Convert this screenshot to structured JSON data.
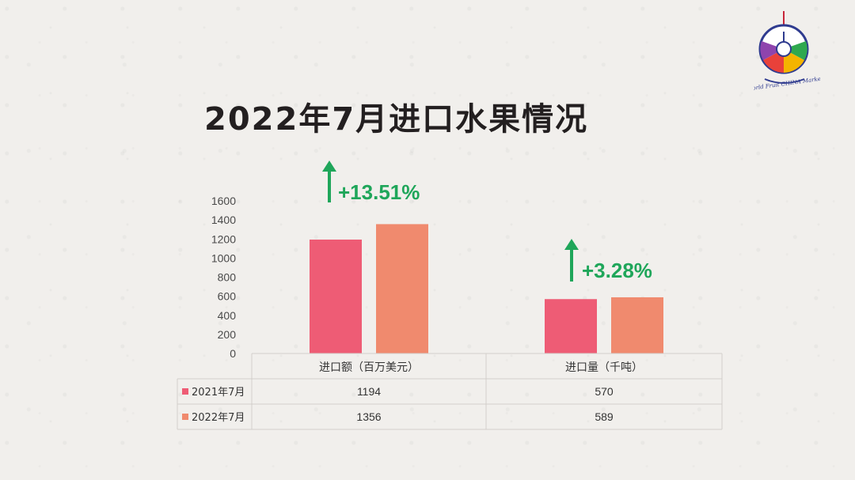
{
  "header": {
    "title": "2022年7月进口水果情况"
  },
  "logo": {
    "icon": "world-fruit-china-market-logo",
    "text": "World Fruit CHINA Market"
  },
  "colors": {
    "series_2021": "#ee5c75",
    "series_2022": "#f08a6e",
    "growth_arrow": "#1fa65a",
    "growth_text": "#1fa65a"
  },
  "chart_data": {
    "type": "bar",
    "categories": [
      "进口额（百万美元）",
      "进口量（千吨）"
    ],
    "series": [
      {
        "name": "2021年7月",
        "values": [
          1194,
          570
        ],
        "labels": [
          "1194",
          "570"
        ]
      },
      {
        "name": "2022年7月",
        "values": [
          1356,
          589
        ],
        "labels": [
          "1356",
          "589"
        ]
      }
    ],
    "yticks": [
      "0",
      "200",
      "400",
      "600",
      "800",
      "1000",
      "1200",
      "1400",
      "1600"
    ],
    "ylim": [
      0,
      1600
    ],
    "grid": false,
    "legend": "data-table",
    "annotations": [
      "+13.51%",
      "+3.28%"
    ]
  }
}
